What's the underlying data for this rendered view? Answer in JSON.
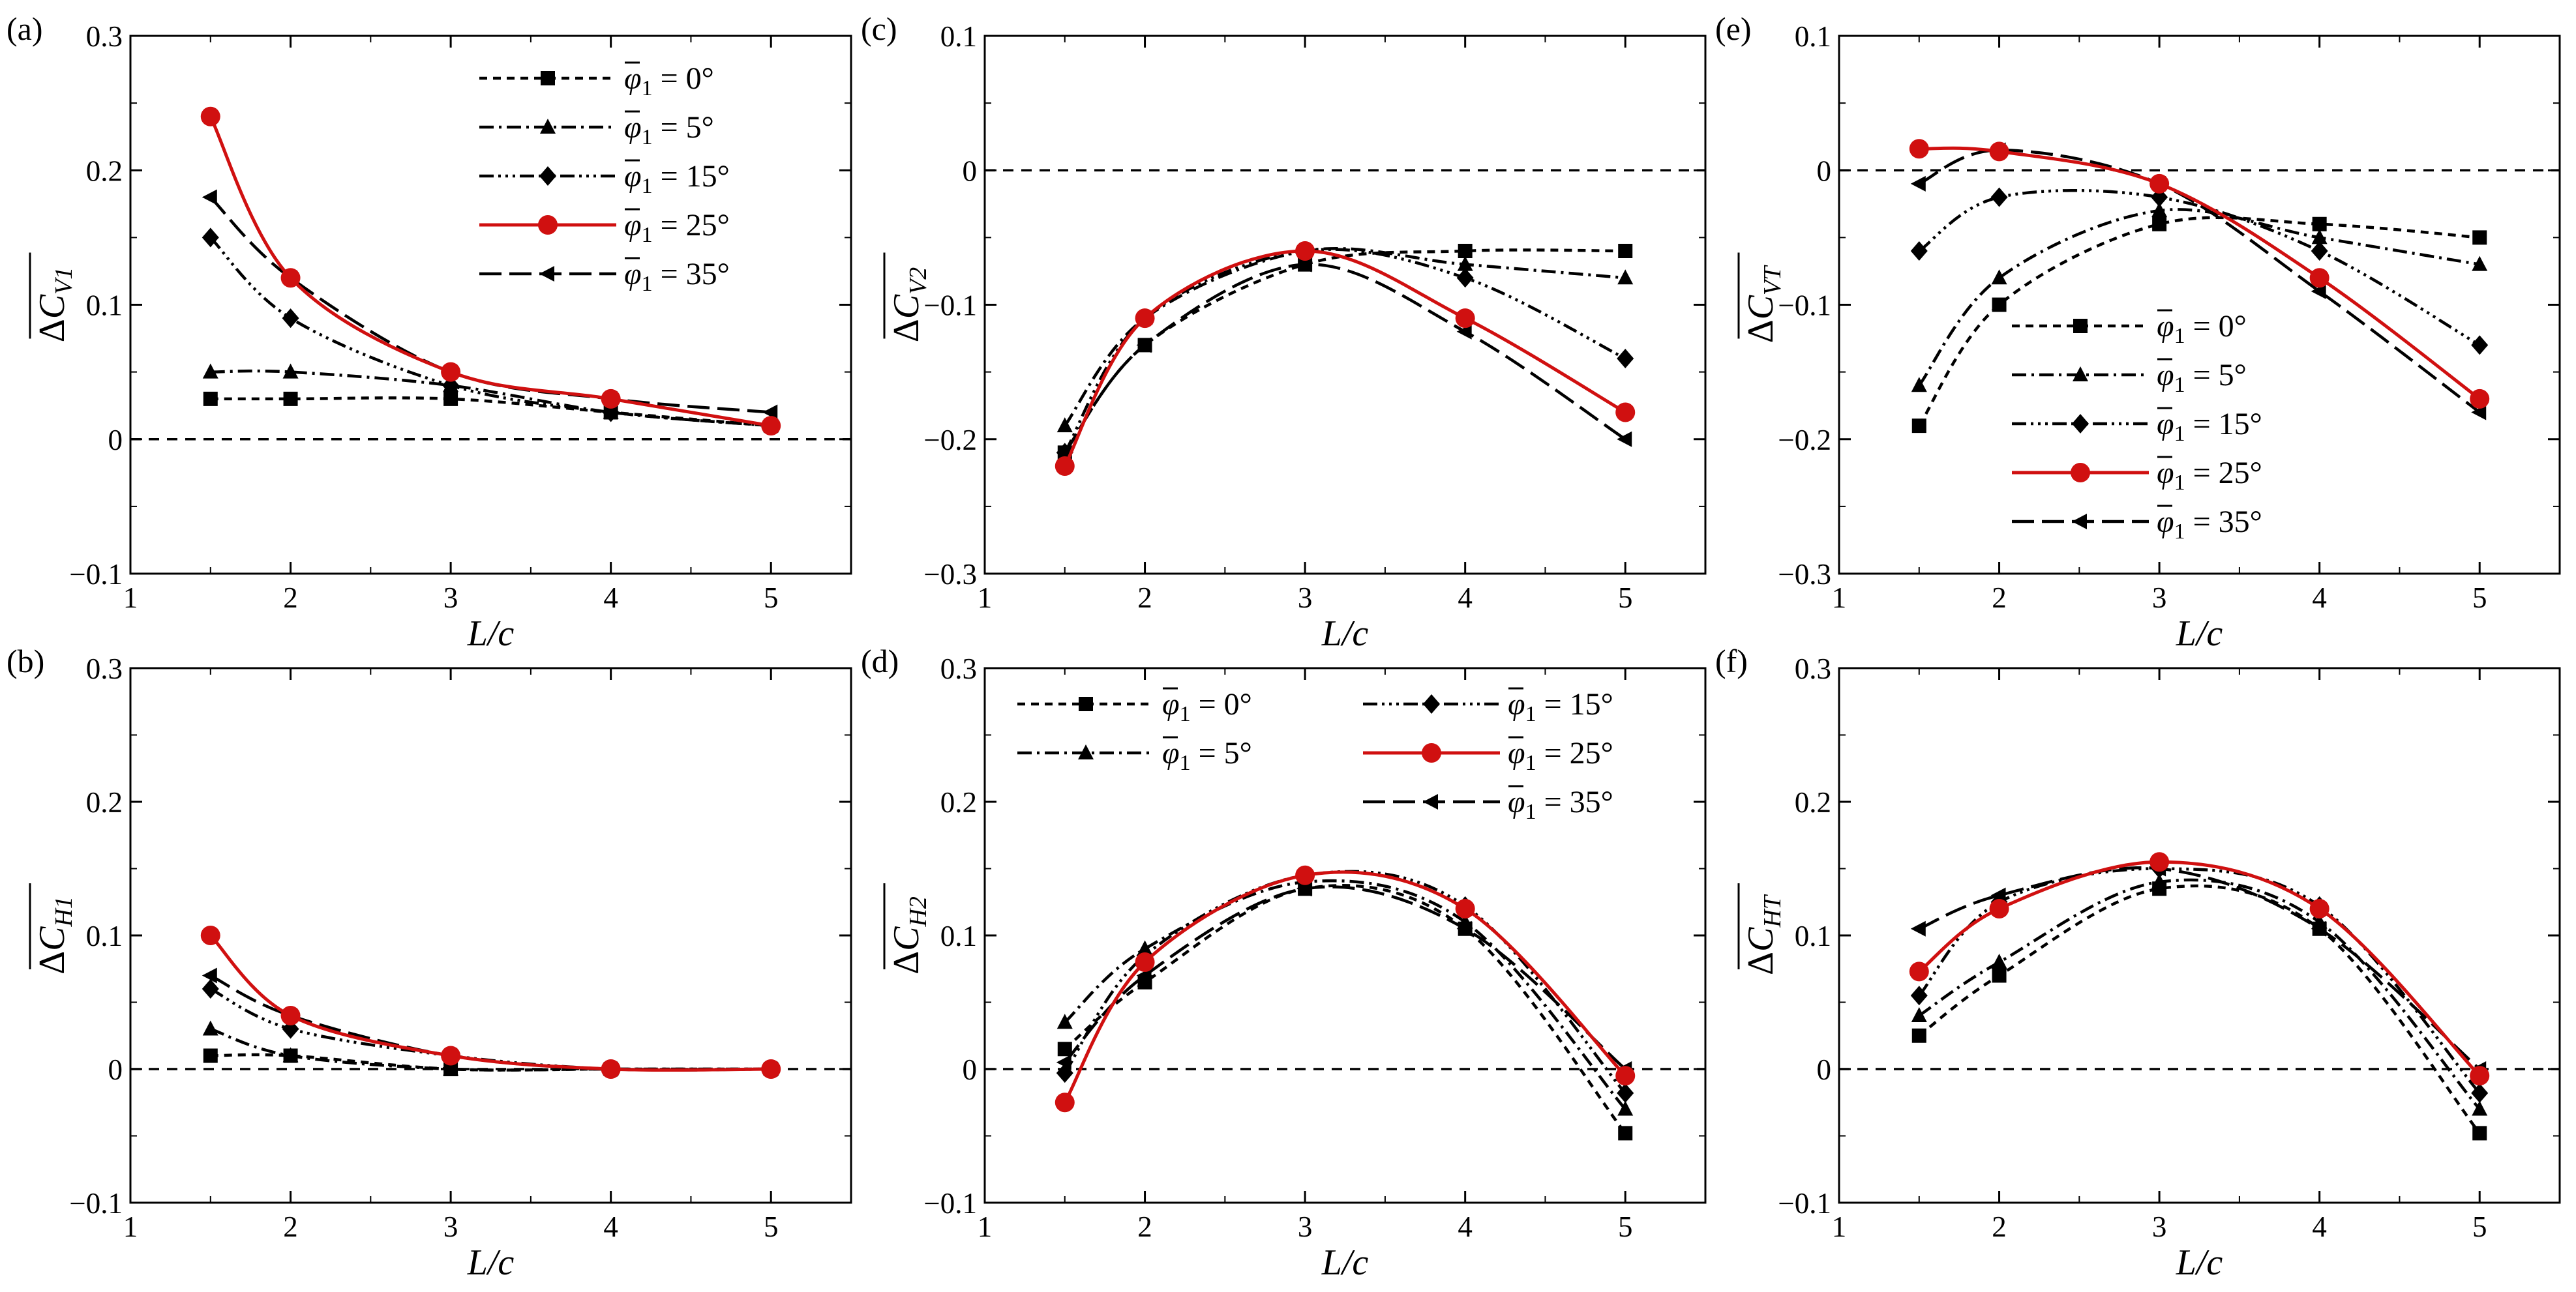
{
  "figure": {
    "xlabel": "L/c",
    "legend_symbol": "φ",
    "legend_subscript": "1",
    "legend_eq": "=",
    "zero_line_style": "dashed"
  },
  "series_styles": [
    {
      "name": "φ̄1 = 0°",
      "angle": "0°",
      "marker": "square",
      "color": "#000000",
      "dash": "12,9"
    },
    {
      "name": "φ̄1 = 5°",
      "angle": "5°",
      "marker": "triangle",
      "color": "#000000",
      "dash": "22,8,4,8"
    },
    {
      "name": "φ̄1 = 15°",
      "angle": "15°",
      "marker": "diamond",
      "color": "#000000",
      "dash": "22,7,4,7,4,7,4,7"
    },
    {
      "name": "φ̄1 = 25°",
      "angle": "25°",
      "marker": "circle",
      "color": "#d01010",
      "dash": ""
    },
    {
      "name": "φ̄1 = 35°",
      "angle": "35°",
      "marker": "triangle-left",
      "color": "#000000",
      "dash": "34,12"
    }
  ],
  "chart_data": [
    {
      "id": "a",
      "panel_label": "(a)",
      "type": "line",
      "ylabel": "ΔC̄V1",
      "ylabel_main": "ΔC",
      "ylabel_sub": "V1",
      "xlabel": "L/c",
      "xlim": [
        1,
        5.5
      ],
      "ylim": [
        -0.1,
        0.3
      ],
      "xticks": [
        "1",
        "2",
        "3",
        "4",
        "5"
      ],
      "yticks": [
        "−0.1",
        "0",
        "0.1",
        "0.2",
        "0.3"
      ],
      "x": [
        1.5,
        2,
        3,
        4,
        5
      ],
      "series": [
        {
          "name": "φ̄1 = 0°",
          "values": [
            0.03,
            0.03,
            0.03,
            0.02,
            0.01
          ]
        },
        {
          "name": "φ̄1 = 5°",
          "values": [
            0.05,
            0.05,
            0.04,
            0.02,
            0.01
          ]
        },
        {
          "name": "φ̄1 = 15°",
          "values": [
            0.15,
            0.09,
            0.04,
            0.02,
            0.01
          ]
        },
        {
          "name": "φ̄1 = 25°",
          "values": [
            0.24,
            0.12,
            0.05,
            0.03,
            0.01
          ]
        },
        {
          "name": "φ̄1 = 35°",
          "values": [
            0.18,
            0.12,
            0.05,
            0.03,
            0.02
          ]
        }
      ],
      "legend": "top-right"
    },
    {
      "id": "b",
      "panel_label": "(b)",
      "type": "line",
      "ylabel": "ΔC̄H1",
      "ylabel_main": "ΔC",
      "ylabel_sub": "H1",
      "xlabel": "L/c",
      "xlim": [
        1,
        5.5
      ],
      "ylim": [
        -0.1,
        0.3
      ],
      "xticks": [
        "1",
        "2",
        "3",
        "4",
        "5"
      ],
      "yticks": [
        "−0.1",
        "0",
        "0.1",
        "0.2",
        "0.3"
      ],
      "x": [
        1.5,
        2,
        3,
        4,
        5
      ],
      "series": [
        {
          "name": "φ̄1 = 0°",
          "values": [
            0.01,
            0.01,
            0.0,
            0.0,
            0.0
          ]
        },
        {
          "name": "φ̄1 = 5°",
          "values": [
            0.03,
            0.01,
            0.0,
            0.0,
            0.0
          ]
        },
        {
          "name": "φ̄1 = 15°",
          "values": [
            0.06,
            0.03,
            0.01,
            0.0,
            0.0
          ]
        },
        {
          "name": "φ̄1 = 25°",
          "values": [
            0.1,
            0.04,
            0.01,
            0.0,
            0.0
          ]
        },
        {
          "name": "φ̄1 = 35°",
          "values": [
            0.07,
            0.04,
            0.01,
            0.0,
            0.0
          ]
        }
      ],
      "legend": "none"
    },
    {
      "id": "c",
      "panel_label": "(c)",
      "type": "line",
      "ylabel": "ΔC̄V2",
      "ylabel_main": "ΔC",
      "ylabel_sub": "V2",
      "xlabel": "L/c",
      "xlim": [
        1,
        5.5
      ],
      "ylim": [
        -0.3,
        0.1
      ],
      "xticks": [
        "1",
        "2",
        "3",
        "4",
        "5"
      ],
      "yticks": [
        "−0.3",
        "−0.2",
        "−0.1",
        "0",
        "0.1"
      ],
      "x": [
        1.5,
        2,
        3,
        4,
        5
      ],
      "series": [
        {
          "name": "φ̄1 = 0°",
          "values": [
            -0.21,
            -0.13,
            -0.07,
            -0.06,
            -0.06
          ]
        },
        {
          "name": "φ̄1 = 5°",
          "values": [
            -0.19,
            -0.11,
            -0.06,
            -0.07,
            -0.08
          ]
        },
        {
          "name": "φ̄1 = 15°",
          "values": [
            -0.21,
            -0.11,
            -0.06,
            -0.08,
            -0.14
          ]
        },
        {
          "name": "φ̄1 = 25°",
          "values": [
            -0.22,
            -0.11,
            -0.06,
            -0.11,
            -0.18
          ]
        },
        {
          "name": "φ̄1 = 35°",
          "values": [
            -0.21,
            -0.13,
            -0.07,
            -0.12,
            -0.2
          ]
        }
      ],
      "legend": "none"
    },
    {
      "id": "d",
      "panel_label": "(d)",
      "type": "line",
      "ylabel": "ΔC̄H2",
      "ylabel_main": "ΔC",
      "ylabel_sub": "H2",
      "xlabel": "L/c",
      "xlim": [
        1,
        5.5
      ],
      "ylim": [
        -0.1,
        0.3
      ],
      "xticks": [
        "1",
        "2",
        "3",
        "4",
        "5"
      ],
      "yticks": [
        "−0.1",
        "0",
        "0.1",
        "0.2",
        "0.3"
      ],
      "x": [
        1.5,
        2,
        3,
        4,
        5
      ],
      "series": [
        {
          "name": "φ̄1 = 0°",
          "values": [
            0.015,
            0.065,
            0.135,
            0.105,
            -0.048
          ]
        },
        {
          "name": "φ̄1 = 5°",
          "values": [
            0.035,
            0.09,
            0.14,
            0.11,
            -0.03
          ]
        },
        {
          "name": "φ̄1 = 15°",
          "values": [
            -0.003,
            0.085,
            0.145,
            0.122,
            -0.018
          ]
        },
        {
          "name": "φ̄1 = 25°",
          "values": [
            -0.025,
            0.08,
            0.145,
            0.12,
            -0.005
          ]
        },
        {
          "name": "φ̄1 = 35°",
          "values": [
            0.005,
            0.07,
            0.135,
            0.105,
            0.0
          ]
        }
      ],
      "legend": "top-two-column"
    },
    {
      "id": "e",
      "panel_label": "(e)",
      "type": "line",
      "ylabel": "ΔC̄VT",
      "ylabel_main": "ΔC",
      "ylabel_sub": "VT",
      "xlabel": "L/c",
      "xlim": [
        1,
        5.5
      ],
      "ylim": [
        -0.3,
        0.1
      ],
      "xticks": [
        "1",
        "2",
        "3",
        "4",
        "5"
      ],
      "yticks": [
        "−0.3",
        "−0.2",
        "−0.1",
        "0",
        "0.1"
      ],
      "x": [
        1.5,
        2,
        3,
        4,
        5
      ],
      "series": [
        {
          "name": "φ̄1 = 0°",
          "values": [
            -0.19,
            -0.1,
            -0.04,
            -0.04,
            -0.05
          ]
        },
        {
          "name": "φ̄1 = 5°",
          "values": [
            -0.16,
            -0.08,
            -0.03,
            -0.05,
            -0.07
          ]
        },
        {
          "name": "φ̄1 = 15°",
          "values": [
            -0.06,
            -0.02,
            -0.02,
            -0.06,
            -0.13
          ]
        },
        {
          "name": "φ̄1 = 25°",
          "values": [
            0.016,
            0.014,
            -0.01,
            -0.08,
            -0.17
          ]
        },
        {
          "name": "φ̄1 = 35°",
          "values": [
            -0.01,
            0.015,
            -0.01,
            -0.09,
            -0.18
          ]
        }
      ],
      "legend": "bottom-right"
    },
    {
      "id": "f",
      "panel_label": "(f)",
      "type": "line",
      "ylabel": "ΔC̄HT",
      "ylabel_main": "ΔC",
      "ylabel_sub": "HT",
      "xlabel": "L/c",
      "xlim": [
        1,
        5.5
      ],
      "ylim": [
        -0.1,
        0.3
      ],
      "xticks": [
        "1",
        "2",
        "3",
        "4",
        "5"
      ],
      "yticks": [
        "−0.1",
        "0",
        "0.1",
        "0.2",
        "0.3"
      ],
      "x": [
        1.5,
        2,
        3,
        4,
        5
      ],
      "series": [
        {
          "name": "φ̄1 = 0°",
          "values": [
            0.025,
            0.07,
            0.135,
            0.105,
            -0.048
          ]
        },
        {
          "name": "φ̄1 = 5°",
          "values": [
            0.04,
            0.08,
            0.14,
            0.11,
            -0.03
          ]
        },
        {
          "name": "φ̄1 = 15°",
          "values": [
            0.055,
            0.125,
            0.15,
            0.122,
            -0.018
          ]
        },
        {
          "name": "φ̄1 = 25°",
          "values": [
            0.073,
            0.12,
            0.155,
            0.12,
            -0.005
          ]
        },
        {
          "name": "φ̄1 = 35°",
          "values": [
            0.105,
            0.13,
            0.15,
            0.105,
            0.0
          ]
        }
      ],
      "legend": "none"
    }
  ]
}
